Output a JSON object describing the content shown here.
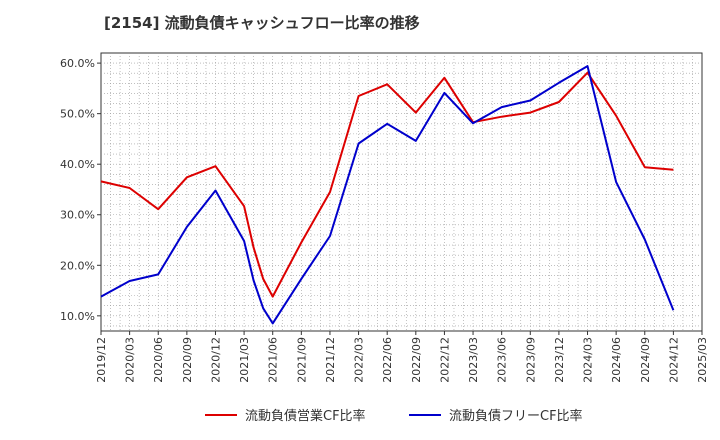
{
  "chart_data": {
    "type": "line",
    "title": "[2154]  流動負債キャッシュフロー比率の推移",
    "xlabel": "",
    "ylabel": "",
    "x_ticks": [
      "2019/12",
      "2020/03",
      "2020/06",
      "2020/09",
      "2020/12",
      "2021/03",
      "2021/06",
      "2021/09",
      "2021/12",
      "2022/03",
      "2022/06",
      "2022/09",
      "2022/12",
      "2023/03",
      "2023/06",
      "2023/09",
      "2023/12",
      "2024/03",
      "2024/06",
      "2024/09",
      "2024/12",
      "2025/03"
    ],
    "y_ticks": [
      "10.0%",
      "20.0%",
      "30.0%",
      "40.0%",
      "50.0%",
      "60.0%"
    ],
    "ylim": [
      7,
      62
    ],
    "grid": true,
    "legend_position": "bottom",
    "series": [
      {
        "name": "流動負債営業CF比率",
        "color": "#dd0000",
        "points": [
          [
            "2019/12",
            36.6
          ],
          [
            "2020/03",
            35.3
          ],
          [
            "2020/06",
            31.1
          ],
          [
            "2020/09",
            37.4
          ],
          [
            "2020/12",
            39.6
          ],
          [
            "2021/03",
            31.7
          ],
          [
            "2021/04",
            23.5
          ],
          [
            "2021/05",
            17.3
          ],
          [
            "2021/06",
            13.8
          ],
          [
            "2021/09",
            24.5
          ],
          [
            "2021/12",
            34.5
          ],
          [
            "2022/03",
            53.5
          ],
          [
            "2022/06",
            55.8
          ],
          [
            "2022/09",
            50.2
          ],
          [
            "2022/12",
            57.1
          ],
          [
            "2023/03",
            48.3
          ],
          [
            "2023/06",
            49.4
          ],
          [
            "2023/09",
            50.2
          ],
          [
            "2023/12",
            52.3
          ],
          [
            "2024/03",
            58.1
          ],
          [
            "2024/06",
            49.6
          ],
          [
            "2024/09",
            39.4
          ],
          [
            "2024/12",
            38.9
          ]
        ]
      },
      {
        "name": "流動負債フリーCF比率",
        "color": "#0000cc",
        "points": [
          [
            "2019/12",
            13.8
          ],
          [
            "2020/03",
            16.9
          ],
          [
            "2020/06",
            18.2
          ],
          [
            "2020/09",
            27.6
          ],
          [
            "2020/12",
            34.8
          ],
          [
            "2021/03",
            24.8
          ],
          [
            "2021/04",
            17.0
          ],
          [
            "2021/05",
            11.5
          ],
          [
            "2021/06",
            8.5
          ],
          [
            "2021/09",
            17.3
          ],
          [
            "2021/12",
            25.8
          ],
          [
            "2022/03",
            44.1
          ],
          [
            "2022/06",
            48.0
          ],
          [
            "2022/09",
            44.6
          ],
          [
            "2022/12",
            54.1
          ],
          [
            "2023/03",
            48.1
          ],
          [
            "2023/06",
            51.3
          ],
          [
            "2023/09",
            52.6
          ],
          [
            "2023/12",
            56.1
          ],
          [
            "2024/03",
            59.4
          ],
          [
            "2024/06",
            36.5
          ],
          [
            "2024/09",
            25.1
          ],
          [
            "2024/12",
            11.1
          ]
        ]
      }
    ]
  }
}
